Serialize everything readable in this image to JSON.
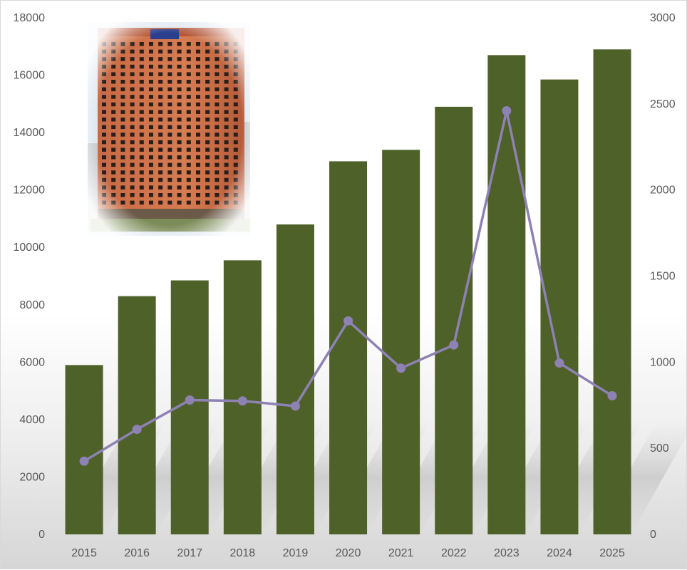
{
  "chart_data": {
    "type": "bar",
    "categories": [
      "2015",
      "2016",
      "2017",
      "2018",
      "2019",
      "2020",
      "2021",
      "2022",
      "2023",
      "2024",
      "2025"
    ],
    "series": [
      {
        "axis": "left",
        "type": "bar",
        "color": "#4e6128",
        "values": [
          5900,
          8300,
          8850,
          9550,
          10800,
          13000,
          13400,
          14900,
          16700,
          15850,
          16900
        ]
      },
      {
        "axis": "right",
        "type": "line",
        "color": "#8e82b4",
        "values": [
          425,
          610,
          780,
          775,
          745,
          1240,
          965,
          1100,
          2460,
          995,
          805
        ]
      }
    ],
    "ylim_left": [
      0,
      18000
    ],
    "ylim_right": [
      0,
      3000
    ],
    "yticks_left": [
      "0",
      "2000",
      "4000",
      "6000",
      "8000",
      "10000",
      "12000",
      "14000",
      "16000",
      "18000"
    ],
    "yticks_right": [
      "0",
      "500",
      "1000",
      "1500",
      "2000",
      "2500",
      "3000"
    ],
    "grid": false,
    "legend": "none",
    "image": "building-photo"
  }
}
